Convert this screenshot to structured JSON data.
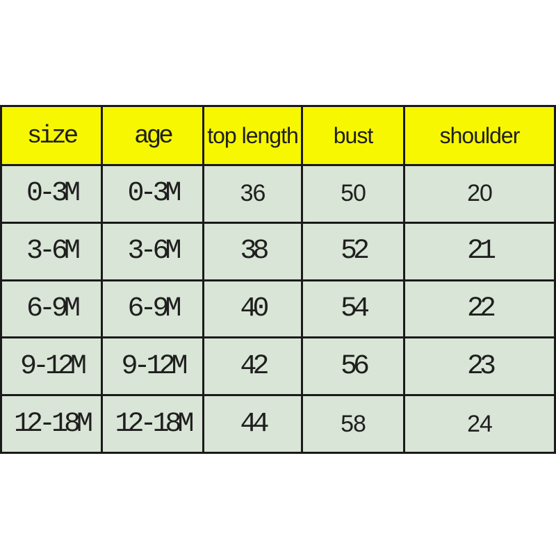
{
  "chart_data": {
    "type": "table",
    "columns": [
      "size",
      "age",
      "top length",
      "bust",
      "shoulder"
    ],
    "rows": [
      [
        "0-3M",
        "0-3M",
        "36",
        "50",
        "20"
      ],
      [
        "3-6M",
        "3-6M",
        "38",
        "52",
        "21"
      ],
      [
        "6-9M",
        "6-9M",
        "40",
        "54",
        "22"
      ],
      [
        "9-12M",
        "9-12M",
        "42",
        "56",
        "23"
      ],
      [
        "12-18M",
        "12-18M",
        "44",
        "58",
        "24"
      ]
    ]
  },
  "colors": {
    "page_bg": "#ffffff",
    "header_bg": "#f7f701",
    "row_bg": "#d9e5d6",
    "border": "#1a1a1a",
    "text": "#1f1f1f"
  }
}
